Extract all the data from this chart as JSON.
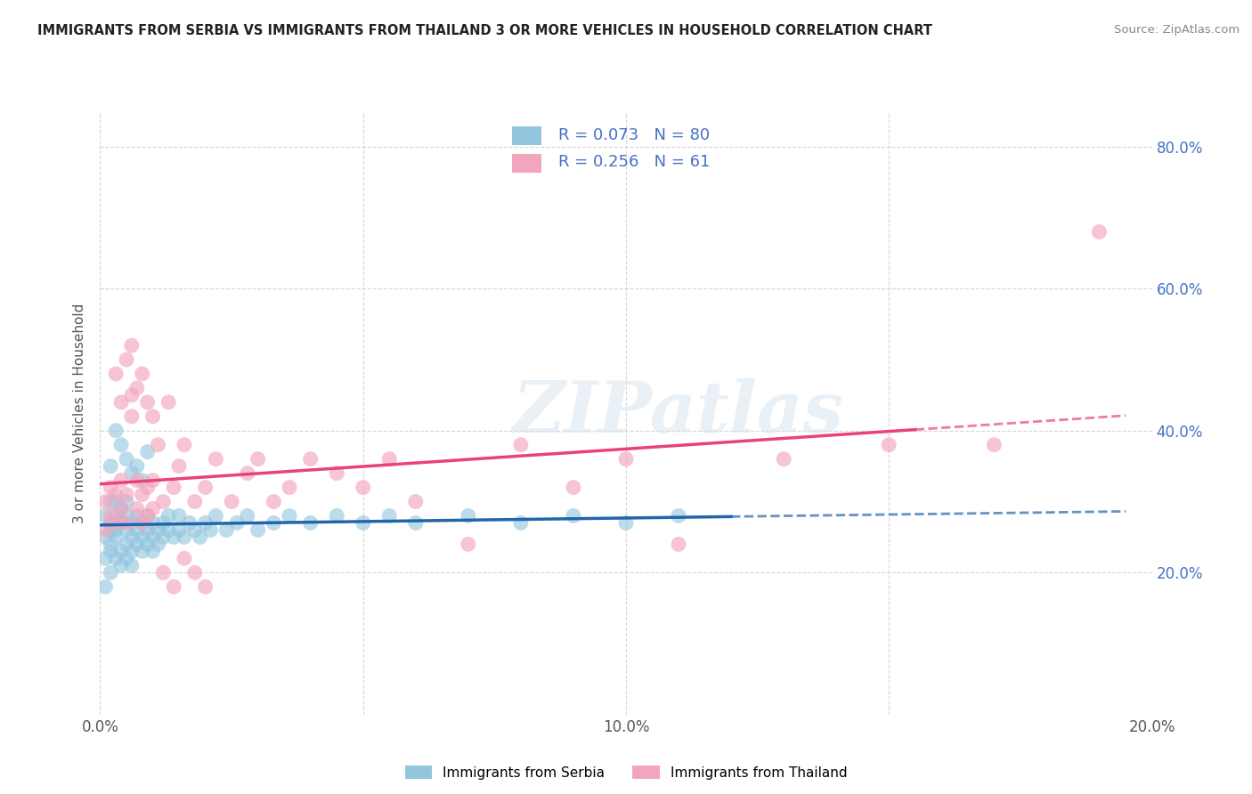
{
  "title": "IMMIGRANTS FROM SERBIA VS IMMIGRANTS FROM THAILAND 3 OR MORE VEHICLES IN HOUSEHOLD CORRELATION CHART",
  "source": "Source: ZipAtlas.com",
  "ylabel": "3 or more Vehicles in Household",
  "xlim": [
    0.0,
    0.2
  ],
  "ylim": [
    0.0,
    0.85
  ],
  "x_ticks": [
    0.0,
    0.05,
    0.1,
    0.15,
    0.2
  ],
  "x_tick_labels": [
    "0.0%",
    "",
    "10.0%",
    "",
    "20.0%"
  ],
  "y_ticks": [
    0.0,
    0.2,
    0.4,
    0.6,
    0.8
  ],
  "y_tick_labels_right": [
    "",
    "20.0%",
    "40.0%",
    "60.0%",
    "80.0%"
  ],
  "serbia_color": "#92c5de",
  "thailand_color": "#f4a5be",
  "serbia_line_color": "#2166ac",
  "thailand_line_color": "#e8427a",
  "R_serbia": 0.073,
  "N_serbia": 80,
  "R_thailand": 0.256,
  "N_thailand": 61,
  "legend_labels": [
    "Immigrants from Serbia",
    "Immigrants from Thailand"
  ],
  "serbia_x": [
    0.001,
    0.001,
    0.001,
    0.001,
    0.002,
    0.002,
    0.002,
    0.002,
    0.002,
    0.002,
    0.003,
    0.003,
    0.003,
    0.003,
    0.003,
    0.004,
    0.004,
    0.004,
    0.004,
    0.005,
    0.005,
    0.005,
    0.005,
    0.005,
    0.006,
    0.006,
    0.006,
    0.006,
    0.007,
    0.007,
    0.007,
    0.008,
    0.008,
    0.008,
    0.009,
    0.009,
    0.009,
    0.01,
    0.01,
    0.01,
    0.011,
    0.011,
    0.012,
    0.012,
    0.013,
    0.013,
    0.014,
    0.015,
    0.015,
    0.016,
    0.017,
    0.018,
    0.019,
    0.02,
    0.021,
    0.022,
    0.024,
    0.026,
    0.028,
    0.03,
    0.033,
    0.036,
    0.04,
    0.045,
    0.05,
    0.055,
    0.06,
    0.07,
    0.08,
    0.09,
    0.1,
    0.11,
    0.002,
    0.003,
    0.004,
    0.005,
    0.006,
    0.007,
    0.008,
    0.009
  ],
  "serbia_y": [
    0.25,
    0.22,
    0.28,
    0.18,
    0.26,
    0.3,
    0.23,
    0.27,
    0.2,
    0.24,
    0.28,
    0.22,
    0.26,
    0.3,
    0.25,
    0.27,
    0.23,
    0.21,
    0.29,
    0.26,
    0.24,
    0.22,
    0.28,
    0.3,
    0.25,
    0.23,
    0.27,
    0.21,
    0.26,
    0.24,
    0.28,
    0.25,
    0.23,
    0.27,
    0.26,
    0.24,
    0.28,
    0.25,
    0.23,
    0.27,
    0.26,
    0.24,
    0.25,
    0.27,
    0.26,
    0.28,
    0.25,
    0.26,
    0.28,
    0.25,
    0.27,
    0.26,
    0.25,
    0.27,
    0.26,
    0.28,
    0.26,
    0.27,
    0.28,
    0.26,
    0.27,
    0.28,
    0.27,
    0.28,
    0.27,
    0.28,
    0.27,
    0.28,
    0.27,
    0.28,
    0.27,
    0.28,
    0.35,
    0.4,
    0.38,
    0.36,
    0.34,
    0.35,
    0.33,
    0.37
  ],
  "thailand_x": [
    0.001,
    0.001,
    0.002,
    0.002,
    0.003,
    0.003,
    0.004,
    0.004,
    0.005,
    0.005,
    0.006,
    0.006,
    0.007,
    0.007,
    0.008,
    0.008,
    0.009,
    0.009,
    0.01,
    0.01,
    0.011,
    0.012,
    0.013,
    0.014,
    0.015,
    0.016,
    0.018,
    0.02,
    0.022,
    0.025,
    0.028,
    0.03,
    0.033,
    0.036,
    0.04,
    0.045,
    0.05,
    0.055,
    0.06,
    0.07,
    0.08,
    0.09,
    0.1,
    0.11,
    0.13,
    0.15,
    0.17,
    0.003,
    0.004,
    0.005,
    0.006,
    0.007,
    0.008,
    0.009,
    0.01,
    0.012,
    0.014,
    0.016,
    0.018,
    0.02,
    0.19
  ],
  "thailand_y": [
    0.26,
    0.3,
    0.28,
    0.32,
    0.27,
    0.31,
    0.29,
    0.33,
    0.27,
    0.31,
    0.45,
    0.52,
    0.29,
    0.33,
    0.27,
    0.31,
    0.28,
    0.32,
    0.29,
    0.33,
    0.38,
    0.3,
    0.44,
    0.32,
    0.35,
    0.38,
    0.3,
    0.32,
    0.36,
    0.3,
    0.34,
    0.36,
    0.3,
    0.32,
    0.36,
    0.34,
    0.32,
    0.36,
    0.3,
    0.24,
    0.38,
    0.32,
    0.36,
    0.24,
    0.36,
    0.38,
    0.38,
    0.48,
    0.44,
    0.5,
    0.42,
    0.46,
    0.48,
    0.44,
    0.42,
    0.2,
    0.18,
    0.22,
    0.2,
    0.18,
    0.68
  ]
}
